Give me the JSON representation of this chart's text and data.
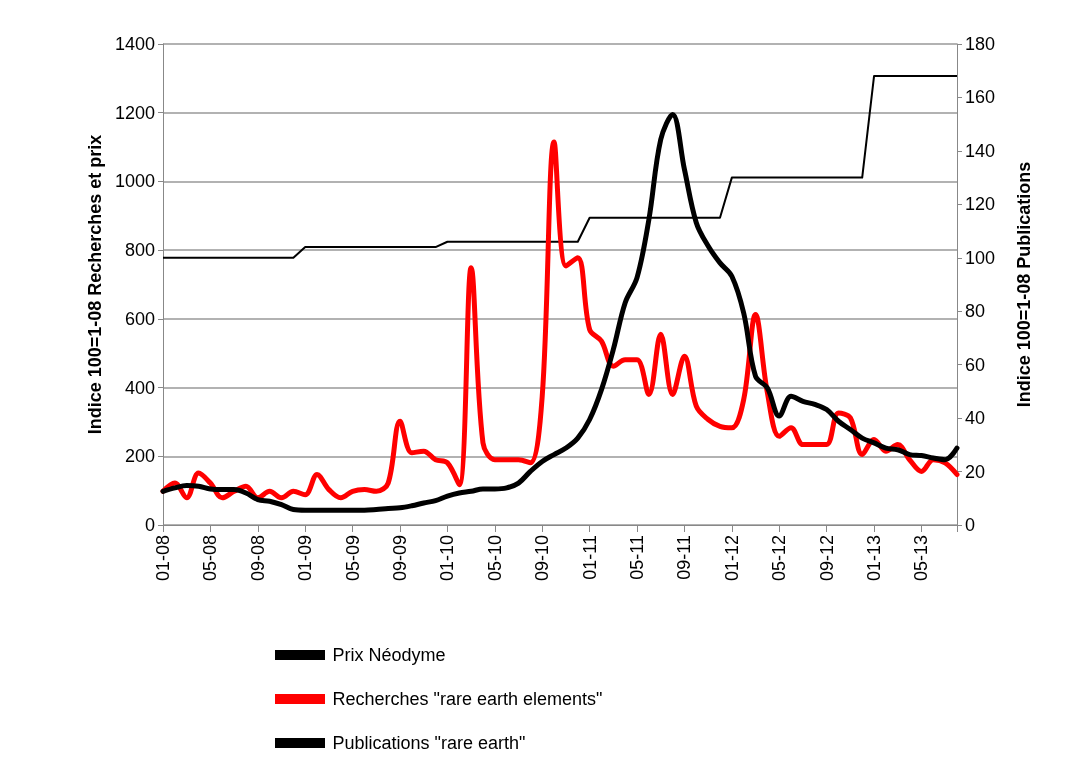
{
  "chart_data": {
    "type": "line",
    "categories": [
      "01-08",
      null,
      null,
      null,
      "05-08",
      null,
      null,
      null,
      "09-08",
      null,
      null,
      null,
      "01-09",
      null,
      null,
      null,
      "05-09",
      null,
      null,
      null,
      "09-09",
      null,
      null,
      null,
      "01-10",
      null,
      null,
      null,
      "05-10",
      null,
      null,
      null,
      "09-10",
      null,
      null,
      null,
      "01-11",
      null,
      null,
      null,
      "05-11",
      null,
      null,
      null,
      "09-11",
      null,
      null,
      null,
      "01-12",
      null,
      null,
      null,
      "05-12",
      null,
      null,
      null,
      "09-12",
      null,
      null,
      null,
      "01-13",
      null,
      null,
      null,
      "05-13",
      null,
      null,
      null
    ],
    "ylabel": "Indice 100=1-08 Recherches et prix",
    "y2label": "Indice 100=1-08 Publications",
    "ylim": [
      0,
      1400
    ],
    "yticks": [
      0,
      200,
      400,
      600,
      800,
      1000,
      1200,
      1400
    ],
    "y2lim": [
      0,
      180
    ],
    "y2ticks": [
      0,
      20,
      40,
      60,
      80,
      100,
      120,
      140,
      160,
      180
    ],
    "grid": "y",
    "legend": "bottom",
    "marker": "none",
    "series": [
      {
        "name": "Prix Néodyme",
        "color": "#000000",
        "values": [
          98,
          108,
          115,
          113,
          105,
          103,
          103,
          93,
          74,
          69,
          59,
          45,
          43,
          43,
          43,
          43,
          43,
          43,
          45,
          48,
          50,
          56,
          64,
          71,
          84,
          93,
          98,
          105,
          105,
          108,
          122,
          156,
          185,
          205,
          224,
          253,
          307,
          394,
          511,
          647,
          720,
          889,
          1122,
          1195,
          1035,
          880,
          812,
          763,
          724,
          617,
          433,
          399,
          317,
          375,
          360,
          351,
          336,
          302,
          278,
          253,
          239,
          224,
          219,
          205,
          202,
          195,
          190,
          224
        ]
      },
      {
        "name": "Recherches \"rare earth elements\"",
        "color": "#ff0000",
        "values": [
          98,
          122,
          79,
          151,
          122,
          79,
          98,
          113,
          79,
          98,
          79,
          98,
          88,
          147,
          103,
          79,
          98,
          103,
          98,
          122,
          302,
          210,
          215,
          190,
          181,
          117,
          749,
          239,
          190,
          190,
          190,
          181,
          375,
          1115,
          754,
          778,
          569,
          535,
          462,
          481,
          481,
          380,
          555,
          380,
          491,
          346,
          307,
          287,
          283,
          365,
          613,
          385,
          258,
          283,
          234,
          234,
          234,
          326,
          312,
          205,
          249,
          215,
          234,
          190,
          156,
          190,
          181,
          147
        ]
      },
      {
        "name": "Publications \"rare earth\"",
        "color": "#000000",
        "axis": "y2",
        "type": "step",
        "values": [
          100,
          100,
          100,
          100,
          100,
          100,
          100,
          100,
          100,
          100,
          100,
          100,
          104,
          104,
          104,
          104,
          104,
          104,
          104,
          104,
          104,
          104,
          104,
          104,
          106,
          106,
          106,
          106,
          106,
          106,
          106,
          106,
          106,
          106,
          106,
          106,
          115,
          115,
          115,
          115,
          115,
          115,
          115,
          115,
          115,
          115,
          115,
          115,
          130,
          130,
          130,
          130,
          130,
          130,
          130,
          130,
          130,
          130,
          130,
          130,
          168,
          168,
          168,
          168,
          168,
          168,
          168,
          168
        ]
      }
    ]
  }
}
